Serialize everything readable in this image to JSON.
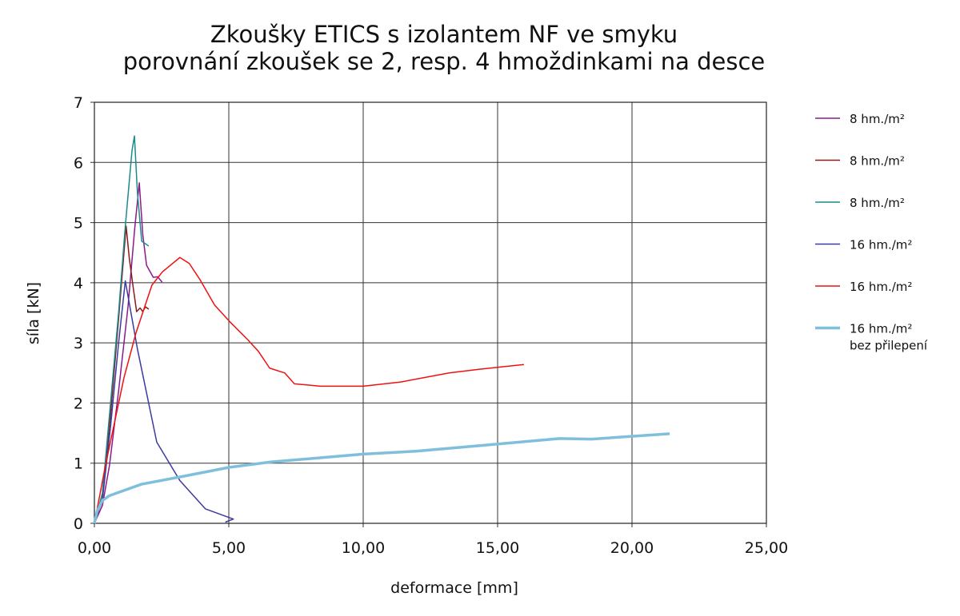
{
  "chart_data": {
    "type": "line",
    "title": "Zkoušky ETICS s izolantem NF ve smyku",
    "subtitle": "porovnání zkoušek se 2, resp. 4 hmoždinkami na desce",
    "xlabel": "deformace [mm]",
    "ylabel": "síla [kN]",
    "xlim": [
      0,
      25
    ],
    "ylim": [
      0,
      7
    ],
    "xticks": [
      "0,00",
      "5,00",
      "10,00",
      "15,00",
      "20,00",
      "25,00"
    ],
    "yticks": [
      "0",
      "1",
      "2",
      "3",
      "4",
      "5",
      "6",
      "7"
    ],
    "grid": true,
    "legend": "right",
    "series": [
      {
        "name": "8 hm./m²",
        "color": "#8b1a8b",
        "width": 1.5,
        "x": [
          0,
          0.3,
          0.56,
          0.9,
          1.25,
          1.5,
          1.67,
          1.8,
          1.94,
          2.19,
          2.35,
          2.52
        ],
        "y": [
          0,
          0.3,
          0.96,
          2.2,
          3.6,
          4.9,
          5.66,
          4.8,
          4.29,
          4.09,
          4.1,
          4.01
        ]
      },
      {
        "name": "8 hm./m²",
        "color": "#8b1a1a",
        "width": 1.5,
        "x": [
          0,
          0.3,
          0.6,
          0.9,
          1.18,
          1.3,
          1.45,
          1.57,
          1.7,
          1.8,
          1.9,
          2.02
        ],
        "y": [
          0,
          0.5,
          1.8,
          3.4,
          4.94,
          4.4,
          3.9,
          3.52,
          3.58,
          3.52,
          3.6,
          3.56
        ]
      },
      {
        "name": "8 hm./m²",
        "color": "#1a8b8b",
        "width": 1.5,
        "x": [
          0,
          0.3,
          0.6,
          0.9,
          1.15,
          1.4,
          1.49,
          1.6,
          1.76,
          2.02
        ],
        "y": [
          0,
          0.5,
          2.0,
          3.5,
          4.94,
          6.2,
          6.44,
          5.5,
          4.69,
          4.61
        ]
      },
      {
        "name": "16 hm./m²",
        "color": "#3a3aa0",
        "width": 1.5,
        "x": [
          0,
          0.3,
          0.6,
          0.9,
          1.15,
          1.6,
          2.32,
          3.18,
          4.13,
          5.17,
          4.87
        ],
        "y": [
          0,
          0.4,
          1.6,
          3.0,
          4.03,
          2.9,
          1.35,
          0.71,
          0.24,
          0.07,
          0.02
        ]
      },
      {
        "name": "16 hm./m²",
        "color": "#ee1111",
        "width": 1.5,
        "x": [
          0,
          0.41,
          1.1,
          1.55,
          2.14,
          2.53,
          3.18,
          3.53,
          3.93,
          4.47,
          5.02,
          5.71,
          6.1,
          6.52,
          7.08,
          7.44,
          8.4,
          10.0,
          11.4,
          13.2,
          14.3,
          15.98
        ],
        "y": [
          0,
          0.96,
          2.42,
          3.17,
          3.96,
          4.18,
          4.42,
          4.32,
          4.05,
          3.63,
          3.36,
          3.05,
          2.86,
          2.58,
          2.5,
          2.32,
          2.28,
          2.28,
          2.35,
          2.5,
          2.56,
          2.64
        ]
      },
      {
        "name": "16 hm./m²",
        "name2": "bez přilepení",
        "color": "#7fbfdc",
        "width": 3.5,
        "x": [
          0,
          0.1,
          0.3,
          0.56,
          1.75,
          3.18,
          5.0,
          6.55,
          10.0,
          12.0,
          14.3,
          17.3,
          18.5,
          21.4
        ],
        "y": [
          0,
          0.2,
          0.38,
          0.46,
          0.65,
          0.77,
          0.93,
          1.02,
          1.15,
          1.2,
          1.29,
          1.41,
          1.4,
          1.49
        ]
      }
    ]
  }
}
